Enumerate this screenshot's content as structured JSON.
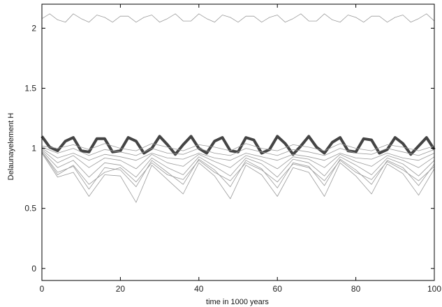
{
  "chart_data": {
    "type": "line",
    "title": "",
    "xlabel": "time in 1000 years",
    "ylabel": "Delaunayelement H",
    "xlim": [
      0,
      100
    ],
    "ylim": [
      -0.1,
      2.2
    ],
    "x_ticks": [
      0,
      20,
      40,
      60,
      80,
      100
    ],
    "x_tick_labels": [
      "0",
      "20",
      "40",
      "60",
      "80",
      "100"
    ],
    "y_ticks": [
      0,
      0.5,
      1,
      1.5,
      2
    ],
    "y_tick_labels": [
      "0",
      "0.5",
      "1",
      "1.5",
      "2"
    ],
    "grid": false,
    "legend": "none",
    "colors": {
      "highlight": "#444444",
      "thin": "#9a9a9a",
      "axis": "#000000"
    },
    "series": [
      {
        "style": "thin",
        "x": [
          0,
          2,
          4,
          6,
          8,
          10,
          12,
          14,
          16,
          18,
          20,
          22,
          24,
          26,
          28,
          30,
          32,
          34,
          36,
          38,
          40,
          42,
          44,
          46,
          48,
          50,
          52,
          54,
          56,
          58,
          60,
          62,
          64,
          66,
          68,
          70,
          72,
          74,
          76,
          78,
          80,
          82,
          84,
          86,
          88,
          90,
          92,
          94,
          96,
          98,
          100
        ],
        "y": [
          2.08,
          2.12,
          2.07,
          2.05,
          2.12,
          2.08,
          2.05,
          2.11,
          2.09,
          2.05,
          2.1,
          2.1,
          2.05,
          2.09,
          2.11,
          2.05,
          2.08,
          2.12,
          2.06,
          2.06,
          2.12,
          2.08,
          2.05,
          2.11,
          2.09,
          2.05,
          2.1,
          2.1,
          2.05,
          2.09,
          2.11,
          2.05,
          2.08,
          2.12,
          2.06,
          2.06,
          2.12,
          2.07,
          2.05,
          2.11,
          2.09,
          2.05,
          2.1,
          2.1,
          2.05,
          2.09,
          2.11,
          2.05,
          2.08,
          2.12,
          2.06
        ]
      },
      {
        "style": "bold",
        "x": [
          0,
          2,
          4,
          6,
          8,
          10,
          12,
          14,
          16,
          18,
          20,
          22,
          24,
          26,
          28,
          30,
          32,
          34,
          36,
          38,
          40,
          42,
          44,
          46,
          48,
          50,
          52,
          54,
          56,
          58,
          60,
          62,
          64,
          66,
          68,
          70,
          72,
          74,
          76,
          78,
          80,
          82,
          84,
          86,
          88,
          90,
          92,
          94,
          96,
          98,
          100
        ],
        "y": [
          1.1,
          1.01,
          0.98,
          1.06,
          1.09,
          0.98,
          0.97,
          1.08,
          1.08,
          0.97,
          0.98,
          1.09,
          1.06,
          0.96,
          1.0,
          1.1,
          1.03,
          0.95,
          1.03,
          1.1,
          1.0,
          0.96,
          1.06,
          1.09,
          0.98,
          0.97,
          1.09,
          1.07,
          0.96,
          0.99,
          1.1,
          1.04,
          0.95,
          1.02,
          1.1,
          1.01,
          0.96,
          1.05,
          1.09,
          0.98,
          0.97,
          1.08,
          1.07,
          0.96,
          0.99,
          1.09,
          1.04,
          0.95,
          1.02,
          1.09,
          0.99
        ]
      },
      {
        "style": "thin",
        "x": [
          0,
          4,
          8,
          12,
          16,
          20,
          24,
          28,
          32,
          36,
          40,
          44,
          48,
          52,
          56,
          60,
          64,
          68,
          72,
          76,
          80,
          84,
          88,
          92,
          96,
          100
        ],
        "y": [
          1.0,
          0.92,
          0.96,
          0.9,
          0.95,
          0.93,
          0.9,
          0.96,
          0.92,
          0.91,
          0.96,
          0.92,
          0.9,
          0.96,
          0.93,
          0.9,
          0.95,
          0.93,
          0.9,
          0.96,
          0.92,
          0.91,
          0.96,
          0.92,
          0.9,
          0.96
        ]
      },
      {
        "style": "thin",
        "x": [
          0,
          4,
          8,
          12,
          16,
          20,
          24,
          28,
          32,
          36,
          40,
          44,
          48,
          52,
          56,
          60,
          64,
          68,
          72,
          76,
          80,
          84,
          88,
          92,
          96,
          100
        ],
        "y": [
          0.99,
          0.88,
          0.94,
          0.84,
          0.92,
          0.9,
          0.83,
          0.95,
          0.88,
          0.85,
          0.95,
          0.89,
          0.84,
          0.94,
          0.9,
          0.83,
          0.93,
          0.91,
          0.84,
          0.95,
          0.89,
          0.85,
          0.94,
          0.9,
          0.84,
          0.93
        ]
      },
      {
        "style": "thin",
        "x": [
          0,
          4,
          8,
          12,
          16,
          20,
          24,
          28,
          32,
          36,
          40,
          44,
          48,
          52,
          56,
          60,
          64,
          68,
          72,
          76,
          80,
          84,
          88,
          92,
          96,
          100
        ],
        "y": [
          0.98,
          0.84,
          0.9,
          0.76,
          0.88,
          0.86,
          0.76,
          0.92,
          0.84,
          0.78,
          0.93,
          0.85,
          0.77,
          0.92,
          0.87,
          0.76,
          0.91,
          0.88,
          0.77,
          0.93,
          0.86,
          0.78,
          0.92,
          0.87,
          0.77,
          0.9
        ]
      },
      {
        "style": "thin",
        "x": [
          0,
          4,
          8,
          12,
          16,
          20,
          24,
          28,
          32,
          36,
          40,
          44,
          48,
          52,
          56,
          60,
          64,
          68,
          72,
          76,
          80,
          84,
          88,
          92,
          96,
          100
        ],
        "y": [
          0.97,
          0.8,
          0.85,
          0.66,
          0.84,
          0.82,
          0.68,
          0.9,
          0.8,
          0.7,
          0.91,
          0.82,
          0.68,
          0.9,
          0.83,
          0.67,
          0.88,
          0.85,
          0.69,
          0.91,
          0.82,
          0.7,
          0.9,
          0.84,
          0.69,
          0.87
        ]
      },
      {
        "style": "thin",
        "x": [
          0,
          4,
          8,
          12,
          16,
          20,
          24,
          28,
          32,
          36,
          40,
          44,
          48,
          52,
          56,
          60,
          64,
          68,
          72,
          76,
          80,
          84,
          88,
          92,
          96,
          100
        ],
        "y": [
          0.96,
          0.76,
          0.8,
          0.6,
          0.78,
          0.77,
          0.55,
          0.86,
          0.74,
          0.62,
          0.88,
          0.77,
          0.58,
          0.86,
          0.78,
          0.6,
          0.84,
          0.8,
          0.6,
          0.88,
          0.77,
          0.62,
          0.87,
          0.79,
          0.61,
          0.83
        ]
      },
      {
        "style": "thin",
        "x": [
          0,
          4,
          8,
          12,
          16,
          20,
          24,
          28,
          32,
          36,
          40,
          44,
          48,
          52,
          56,
          60,
          64,
          68,
          72,
          76,
          80,
          84,
          88,
          92,
          96,
          100
        ],
        "y": [
          1.02,
          1.0,
          1.03,
          0.99,
          1.04,
          1.0,
          0.98,
          1.04,
          1.01,
          0.98,
          1.03,
          1.01,
          0.98,
          1.04,
          1.0,
          0.98,
          1.03,
          1.01,
          0.98,
          1.04,
          1.0,
          0.98,
          1.03,
          1.01,
          0.98,
          1.02
        ]
      },
      {
        "style": "thin",
        "x": [
          0,
          4,
          8,
          12,
          16,
          20,
          24,
          28,
          32,
          36,
          40,
          44,
          48,
          52,
          56,
          60,
          64,
          68,
          72,
          76,
          80,
          84,
          88,
          92,
          96,
          100
        ],
        "y": [
          1.01,
          0.96,
          1.0,
          0.94,
          0.99,
          0.97,
          0.94,
          1.0,
          0.96,
          0.95,
          1.0,
          0.96,
          0.94,
          1.0,
          0.97,
          0.94,
          0.99,
          0.97,
          0.94,
          1.0,
          0.96,
          0.95,
          1.0,
          0.97,
          0.94,
          0.99
        ]
      },
      {
        "style": "thin",
        "x": [
          0,
          4,
          8,
          12,
          16,
          20,
          24,
          28,
          32,
          36,
          40,
          44,
          48,
          52,
          56,
          60,
          64,
          68,
          72,
          76,
          80,
          84,
          88,
          92,
          96,
          100
        ],
        "y": [
          0.97,
          0.78,
          0.86,
          0.7,
          0.8,
          0.84,
          0.72,
          0.88,
          0.78,
          0.74,
          0.9,
          0.8,
          0.73,
          0.88,
          0.82,
          0.72,
          0.87,
          0.84,
          0.73,
          0.9,
          0.8,
          0.74,
          0.89,
          0.82,
          0.73,
          0.85
        ]
      }
    ]
  }
}
